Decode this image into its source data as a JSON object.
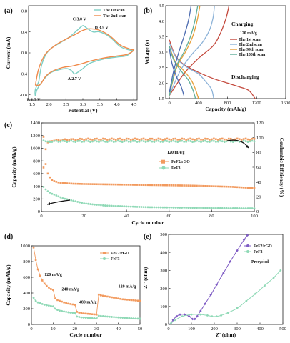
{
  "figure": {
    "panels": [
      "a",
      "b",
      "c",
      "d",
      "e"
    ]
  },
  "chart_data": [
    {
      "panel": "(a)",
      "type": "line",
      "xlabel": "Potential (V)",
      "ylabel": "Current (mA)",
      "xlim": [
        1.5,
        4.5
      ],
      "ylim": [
        -0.9,
        0.9
      ],
      "xticks": [
        "1.5",
        "2.0",
        "2.5",
        "3.0",
        "3.5",
        "4.0",
        "4.5"
      ],
      "yticks": [
        "-0.8",
        "-0.4",
        "0.0",
        "0.4",
        "0.8"
      ],
      "colors": {
        "scan1": "#7ecfc4",
        "scan2": "#f08a4b"
      },
      "legend": [
        "The 1st scan",
        "The 2nd scan"
      ],
      "annotations": [
        "C 3.0 V",
        "D 3.5 V",
        "A 2.7 V",
        "B 1.7 V"
      ],
      "series": [
        {
          "name": "The 1st scan",
          "x": [
            1.7,
            1.8,
            2.0,
            2.3,
            2.6,
            2.85,
            3.0,
            3.1,
            3.3,
            3.5,
            3.8,
            4.1,
            4.4,
            4.5,
            4.3,
            4.0,
            3.6,
            3.2,
            3.0,
            2.85,
            2.75,
            2.65,
            2.5,
            2.2,
            2.0,
            1.8,
            1.65,
            1.6,
            1.6,
            1.7
          ],
          "y": [
            -0.55,
            -0.2,
            0.05,
            0.18,
            0.3,
            0.44,
            0.52,
            0.48,
            0.4,
            0.4,
            0.3,
            0.12,
            0.05,
            0.06,
            -0.05,
            -0.08,
            -0.12,
            -0.2,
            -0.3,
            -0.37,
            -0.4,
            -0.33,
            -0.3,
            -0.34,
            -0.4,
            -0.55,
            -0.7,
            -0.82,
            -0.7,
            -0.55
          ]
        },
        {
          "name": "The 2nd scan",
          "x": [
            1.6,
            1.7,
            1.9,
            2.2,
            2.5,
            2.8,
            3.0,
            3.2,
            3.5,
            3.8,
            4.1,
            4.4,
            4.5,
            4.3,
            4.0,
            3.6,
            3.2,
            3.0,
            2.7,
            2.4,
            2.1,
            1.9,
            1.75,
            1.6
          ],
          "y": [
            -0.62,
            -0.3,
            -0.02,
            0.15,
            0.26,
            0.36,
            0.43,
            0.46,
            0.43,
            0.32,
            0.15,
            0.07,
            0.05,
            -0.03,
            -0.06,
            -0.1,
            -0.16,
            -0.2,
            -0.25,
            -0.28,
            -0.35,
            -0.45,
            -0.6,
            -0.62
          ]
        }
      ]
    },
    {
      "panel": "(b)",
      "type": "line",
      "xlabel": "Capacity (mAh/g)",
      "ylabel": "Voltage (v)",
      "xlim": [
        -50,
        1600
      ],
      "ylim": [
        1.5,
        4.5
      ],
      "xticks": [
        "0",
        "400",
        "800",
        "1200",
        "1600"
      ],
      "yticks": [
        "1.5",
        "2.0",
        "2.5",
        "3.0",
        "3.5",
        "4.0",
        "4.5"
      ],
      "legend_title": "120 mA/g",
      "legend": [
        "The 1st scan",
        "The 2nd scan",
        "The 99th scan",
        "The 100th scan"
      ],
      "annotations": [
        "Charging",
        "Discharging"
      ],
      "series": [
        {
          "name": "The 1st scan",
          "color": "#c44a3e",
          "discharge": {
            "x": [
              0,
              80,
              200,
              400,
              600,
              800,
              1000,
              1100,
              1180
            ],
            "y": [
              3.4,
              2.9,
              2.6,
              2.35,
              2.15,
              2.0,
              1.85,
              1.75,
              1.5
            ]
          },
          "charge": {
            "x": [
              0,
              200,
              400,
              600,
              700,
              780,
              820
            ],
            "y": [
              1.6,
              2.3,
              2.8,
              3.2,
              3.6,
              4.1,
              4.5
            ]
          }
        },
        {
          "name": "The 2nd scan",
          "color": "#8db3d8",
          "discharge": {
            "x": [
              0,
              100,
              250,
              400,
              500,
              580,
              610
            ],
            "y": [
              3.3,
              2.8,
              2.5,
              2.3,
              2.05,
              1.8,
              1.5
            ]
          },
          "charge": {
            "x": [
              0,
              150,
              300,
              450,
              550,
              600,
              620
            ],
            "y": [
              1.6,
              2.4,
              2.9,
              3.3,
              3.7,
              4.1,
              4.5
            ]
          }
        },
        {
          "name": "The 99th scan",
          "color": "#e8a03a",
          "discharge": {
            "x": [
              0,
              80,
              200,
              300,
              360,
              400
            ],
            "y": [
              3.2,
              2.7,
              2.4,
              2.1,
              1.8,
              1.5
            ]
          },
          "charge": {
            "x": [
              0,
              100,
              220,
              320,
              380,
              420
            ],
            "y": [
              1.6,
              2.5,
              3.0,
              3.5,
              4.0,
              4.5
            ]
          }
        },
        {
          "name": "The 100th scan",
          "color": "#5fae9a",
          "discharge": {
            "x": [
              0,
              60,
              160,
              260,
              320,
              360
            ],
            "y": [
              3.2,
              2.75,
              2.4,
              2.1,
              1.8,
              1.5
            ]
          },
          "charge": {
            "x": [
              0,
              90,
              200,
              290,
              350,
              390
            ],
            "y": [
              1.6,
              2.5,
              3.0,
              3.5,
              4.0,
              4.5
            ]
          }
        },
        {
          "name": "",
          "color": "#4c6bb0",
          "discharge": {
            "x": [
              0,
              40,
              100,
              160,
              200
            ],
            "y": [
              3.1,
              2.6,
              2.2,
              1.9,
              1.6
            ]
          },
          "charge": {
            "x": [
              0,
              60,
              130,
              200,
              260,
              300
            ],
            "y": [
              1.7,
              2.4,
              3.0,
              3.5,
              4.0,
              4.5
            ]
          }
        }
      ]
    },
    {
      "panel": "(c)",
      "type": "scatter",
      "xlabel": "Cycle number",
      "ylabel": "Capacity (mAh/g)",
      "ylabel2": "Coulombic Effitiency (%)",
      "xlim": [
        0,
        100
      ],
      "ylim": [
        0,
        1400
      ],
      "ylim2": [
        0,
        120
      ],
      "xticks": [
        "0",
        "20",
        "40",
        "60",
        "80",
        "100"
      ],
      "yticks": [
        "0",
        "200",
        "400",
        "600",
        "800",
        "1000",
        "1200",
        "1400"
      ],
      "yticks2": [
        "0",
        "20",
        "40",
        "60",
        "80",
        "100",
        "120"
      ],
      "annotations": [
        "120 mA/g"
      ],
      "legend": [
        "FeF2/rGO",
        "FeF3"
      ],
      "colors": {
        "rgo": "#f29a5e",
        "fef3": "#8fd9b6"
      },
      "series": [
        {
          "name": "FeF2/rGO capacity",
          "x": [
            1,
            2,
            3,
            4,
            5,
            6,
            8,
            10,
            15,
            20,
            30,
            40,
            50,
            60,
            70,
            80,
            90,
            100
          ],
          "y": [
            1180,
            750,
            600,
            540,
            500,
            480,
            460,
            450,
            440,
            435,
            430,
            425,
            420,
            415,
            410,
            400,
            390,
            370
          ]
        },
        {
          "name": "FeF3 capacity",
          "x": [
            1,
            2,
            3,
            5,
            8,
            10,
            15,
            20,
            25,
            30,
            40,
            50,
            60,
            70,
            80,
            90,
            100
          ],
          "y": [
            390,
            350,
            320,
            280,
            240,
            210,
            170,
            130,
            110,
            95,
            80,
            70,
            65,
            60,
            55,
            52,
            50
          ]
        },
        {
          "name": "FeF2/rGO CE",
          "x": [
            1,
            2,
            3,
            5,
            10,
            20,
            40,
            60,
            80,
            100
          ],
          "y": [
            60,
            85,
            93,
            96,
            97,
            98,
            98,
            98,
            98,
            98
          ]
        },
        {
          "name": "FeF3 CE",
          "x": [
            1,
            2,
            3,
            5,
            10,
            20,
            40,
            60,
            80,
            100
          ],
          "y": [
            97,
            95,
            94,
            95,
            95,
            95,
            95,
            95,
            95,
            95
          ]
        }
      ]
    },
    {
      "panel": "(d)",
      "type": "scatter",
      "xlabel": "Cycle number",
      "ylabel": "Capacity (mAh/g)",
      "xlim": [
        0,
        50
      ],
      "ylim": [
        0,
        1000
      ],
      "xticks": [
        "0",
        "10",
        "20",
        "30",
        "40",
        "50"
      ],
      "yticks": [
        "0",
        "200",
        "400",
        "600",
        "800",
        "1000"
      ],
      "annotations": [
        "120 mA/g",
        "240 mA/g",
        "480 mA/g",
        "120 mA/g"
      ],
      "legend": [
        "FeF2/rGO",
        "FeF3"
      ],
      "series": [
        {
          "name": "FeF2/rGO",
          "x": [
            1,
            2,
            3,
            4,
            5,
            6,
            7,
            8,
            9,
            10,
            11,
            12,
            13,
            14,
            15,
            16,
            17,
            18,
            19,
            20,
            21,
            22,
            23,
            24,
            25,
            26,
            27,
            28,
            29,
            30,
            31,
            32,
            33,
            34,
            35,
            36,
            37,
            38,
            39,
            40,
            41,
            42,
            43,
            44,
            45,
            46,
            47,
            48,
            49,
            50
          ],
          "y": [
            980,
            820,
            700,
            620,
            560,
            520,
            490,
            470,
            450,
            440,
            330,
            310,
            300,
            290,
            280,
            270,
            265,
            260,
            255,
            250,
            160,
            150,
            145,
            140,
            138,
            135,
            133,
            130,
            128,
            125,
            380,
            370,
            365,
            360,
            355,
            350,
            345,
            340,
            335,
            330,
            325,
            320,
            318,
            315,
            312,
            310,
            308,
            305,
            302,
            300
          ]
        },
        {
          "name": "FeF3",
          "x": [
            1,
            2,
            3,
            4,
            5,
            6,
            7,
            8,
            9,
            10,
            11,
            12,
            13,
            14,
            15,
            16,
            17,
            18,
            19,
            20,
            21,
            22,
            23,
            24,
            25,
            26,
            27,
            28,
            29,
            30,
            31,
            32,
            33,
            34,
            35,
            36,
            37,
            38,
            39,
            40,
            41,
            42,
            43,
            44,
            45,
            46,
            47,
            48,
            49,
            50
          ],
          "y": [
            340,
            300,
            280,
            270,
            260,
            250,
            245,
            240,
            235,
            230,
            200,
            185,
            175,
            170,
            165,
            160,
            155,
            150,
            148,
            145,
            100,
            95,
            90,
            88,
            86,
            84,
            82,
            80,
            78,
            76,
            110,
            108,
            105,
            102,
            100,
            98,
            96,
            94,
            92,
            90,
            88,
            86,
            84,
            82,
            80,
            78,
            76,
            75,
            74,
            72
          ]
        }
      ]
    },
    {
      "panel": "(e)",
      "type": "scatter",
      "xlabel": "Z' (ohm)",
      "ylabel": "- Z'' (ohm)",
      "xlim": [
        0,
        500
      ],
      "ylim": [
        0,
        500
      ],
      "xticks": [
        "0",
        "100",
        "200",
        "300",
        "400",
        "500"
      ],
      "yticks": [
        "0",
        "100",
        "200",
        "300",
        "400",
        "500"
      ],
      "legend": [
        "FeF2/rGO",
        "FeF3"
      ],
      "annotations": [
        "Precycled"
      ],
      "series": [
        {
          "name": "FeF2/rGO",
          "x": [
            10,
            20,
            35,
            50,
            70,
            90,
            105,
            115,
            125,
            140,
            160,
            185,
            210,
            240,
            270,
            300,
            330,
            345
          ],
          "y": [
            5,
            25,
            45,
            55,
            55,
            45,
            30,
            30,
            45,
            75,
            115,
            165,
            220,
            285,
            350,
            410,
            470,
            495
          ]
        },
        {
          "name": "FeF3",
          "x": [
            10,
            30,
            60,
            100,
            140,
            170,
            190,
            210,
            230,
            260,
            300,
            340,
            380,
            420,
            460,
            490
          ],
          "y": [
            5,
            25,
            45,
            55,
            55,
            50,
            45,
            45,
            50,
            65,
            90,
            130,
            170,
            215,
            260,
            300
          ]
        }
      ]
    }
  ]
}
